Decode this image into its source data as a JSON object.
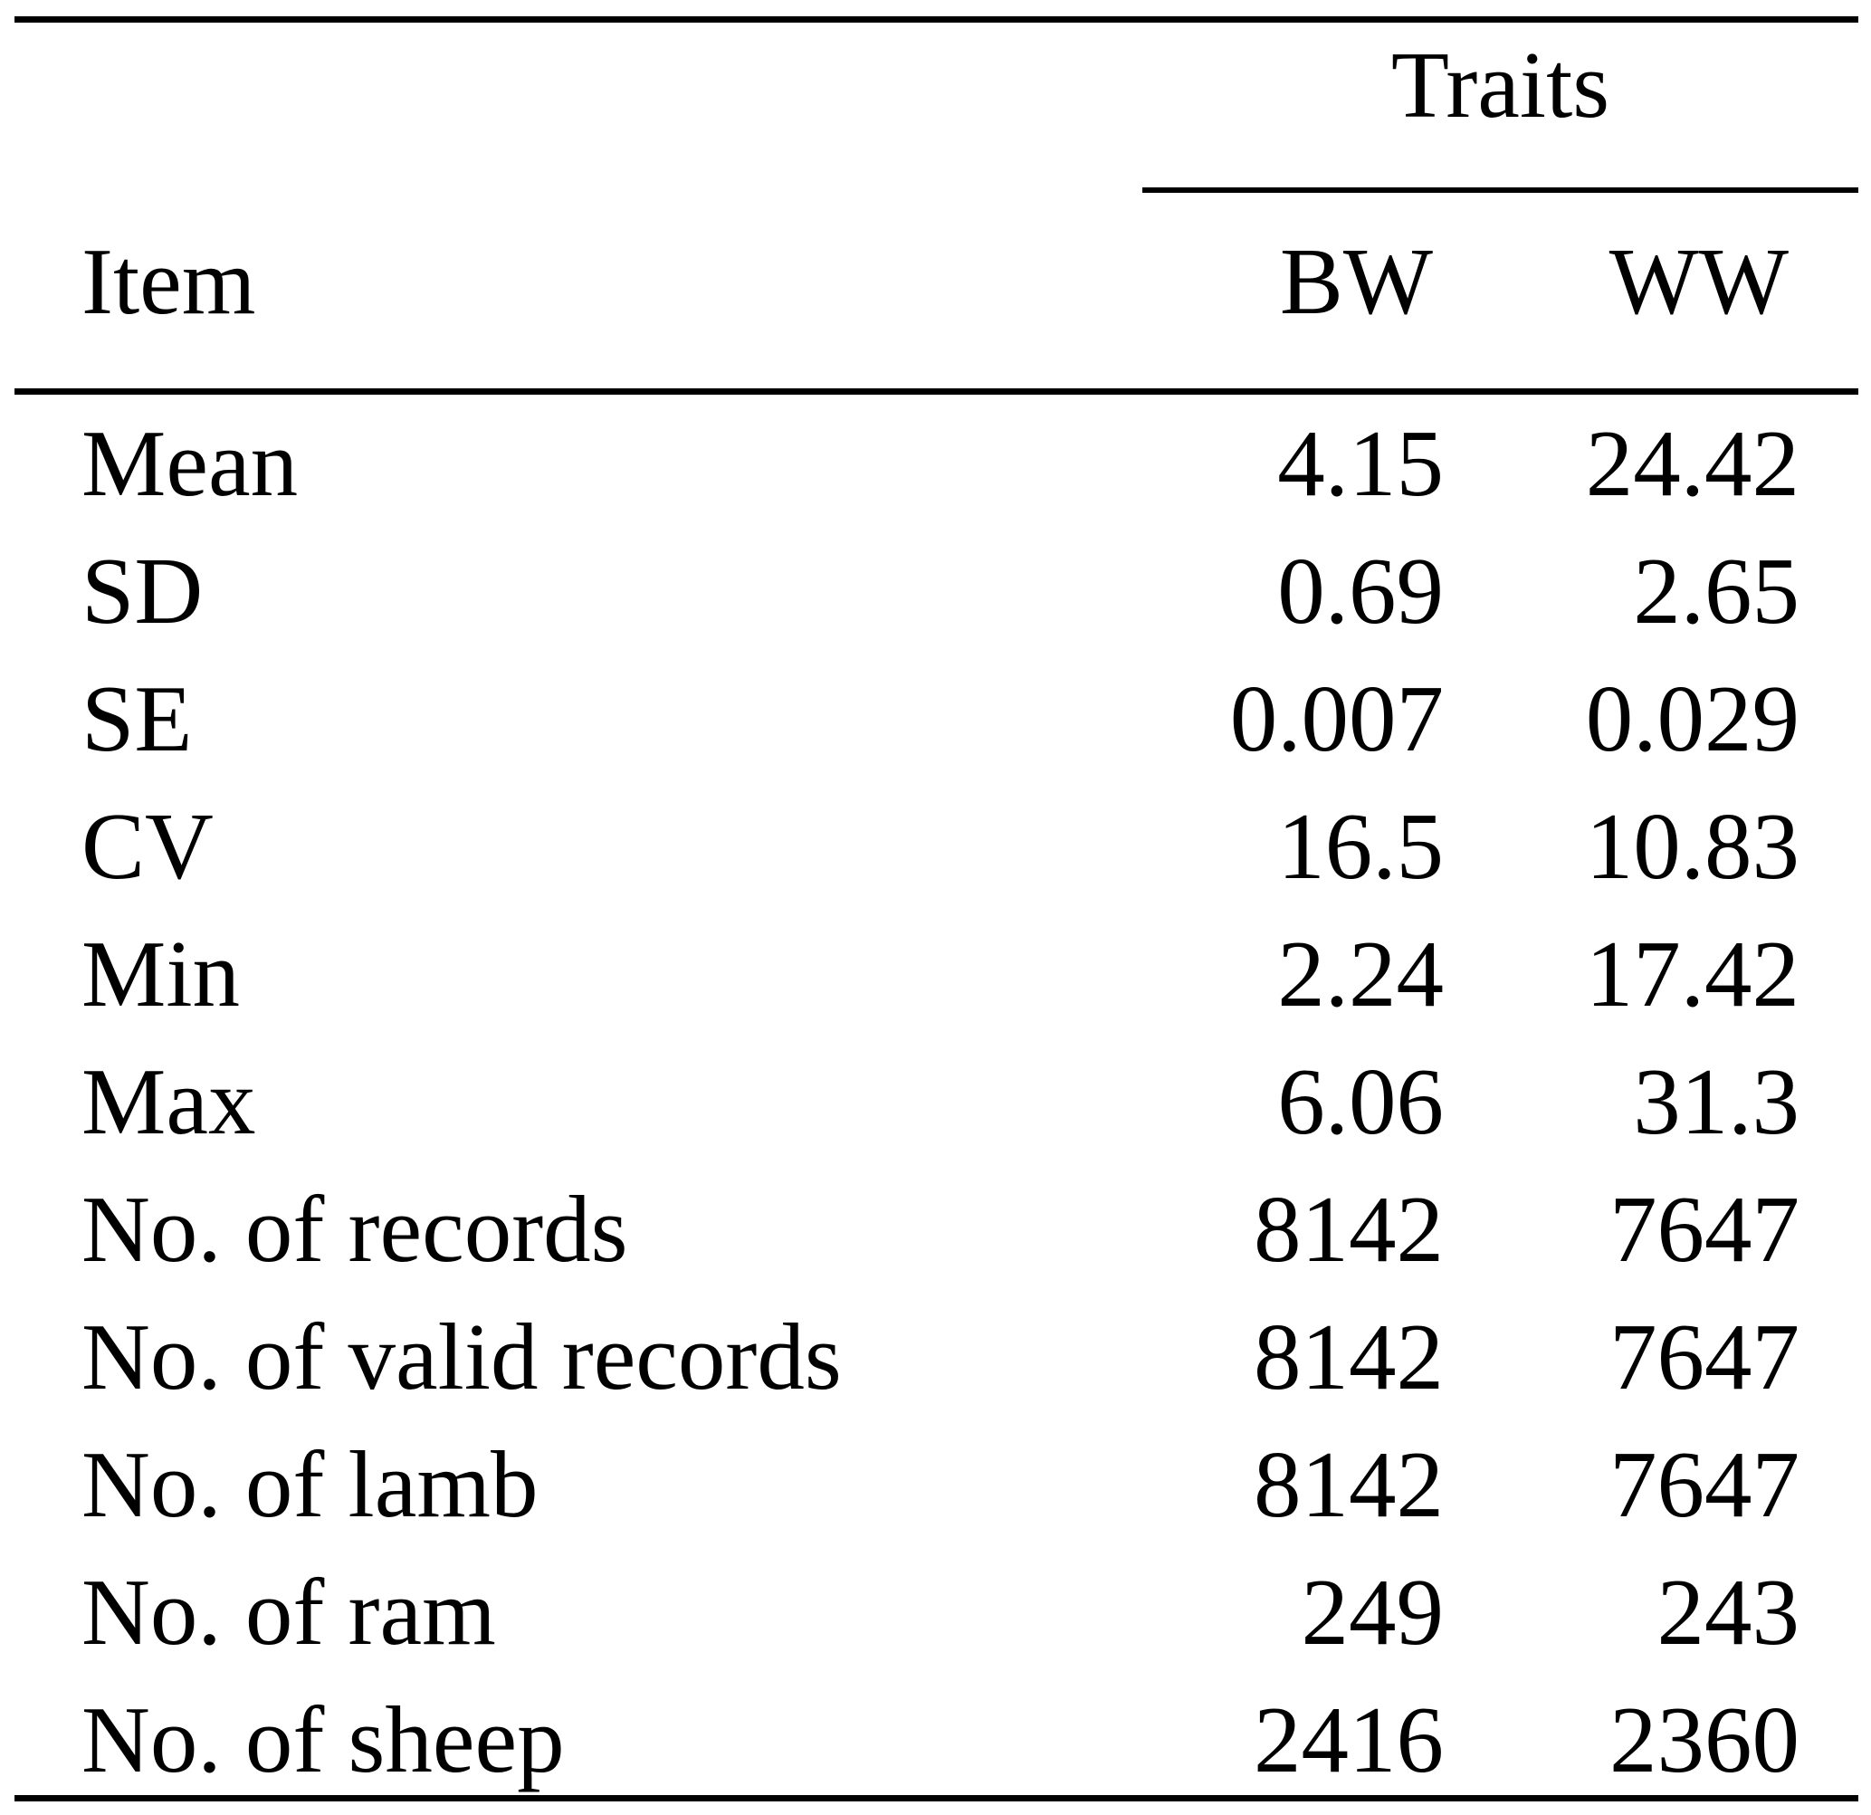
{
  "table": {
    "header": {
      "group_label": "Traits",
      "item_label": "Item",
      "col_bw": "BW",
      "col_ww": "WW"
    },
    "rows": [
      {
        "label": "Mean",
        "bw": "4.15",
        "ww": "24.42"
      },
      {
        "label": "SD",
        "bw": "0.69",
        "ww": "2.65"
      },
      {
        "label": "SE",
        "bw": "0.007",
        "ww": "0.029"
      },
      {
        "label": "CV",
        "bw": "16.5",
        "ww": "10.83"
      },
      {
        "label": "Min",
        "bw": "2.24",
        "ww": "17.42"
      },
      {
        "label": "Max",
        "bw": "6.06",
        "ww": "31.3"
      },
      {
        "label": "No. of records",
        "bw": "8142",
        "ww": "7647"
      },
      {
        "label": "No. of valid records",
        "bw": "8142",
        "ww": "7647"
      },
      {
        "label": "No. of lamb",
        "bw": "8142",
        "ww": "7647"
      },
      {
        "label": "No. of ram",
        "bw": "249",
        "ww": "243"
      },
      {
        "label": "No. of sheep",
        "bw": "2416",
        "ww": "2360"
      }
    ],
    "colors": {
      "text": "#000000",
      "background": "#ffffff",
      "rule": "#000000"
    }
  }
}
